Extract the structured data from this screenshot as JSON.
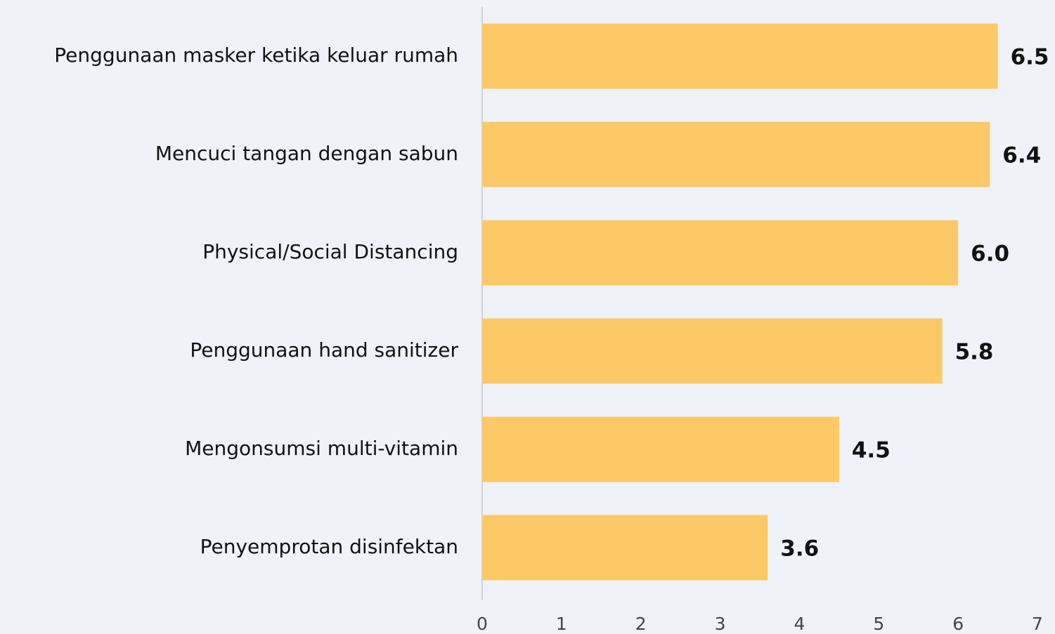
{
  "chart_data": {
    "type": "barh",
    "categories": [
      "Penggunaan masker ketika keluar rumah",
      "Mencuci tangan dengan sabun",
      "Physical/Social Distancing",
      "Penggunaan hand sanitizer",
      "Mengonsumsi multi-vitamin",
      "Penyemprotan disinfektan"
    ],
    "values": [
      6.5,
      6.4,
      6,
      5.8,
      4.5,
      3.6
    ],
    "value_labels": [
      "6.5",
      "6.4",
      "6.0",
      "5.8",
      "4.5",
      "3.6"
    ],
    "color": "#fdc966",
    "xlim": [
      0,
      7
    ],
    "xticks": [
      0,
      1,
      2,
      3,
      4,
      5,
      6,
      7
    ],
    "grid": false
  }
}
